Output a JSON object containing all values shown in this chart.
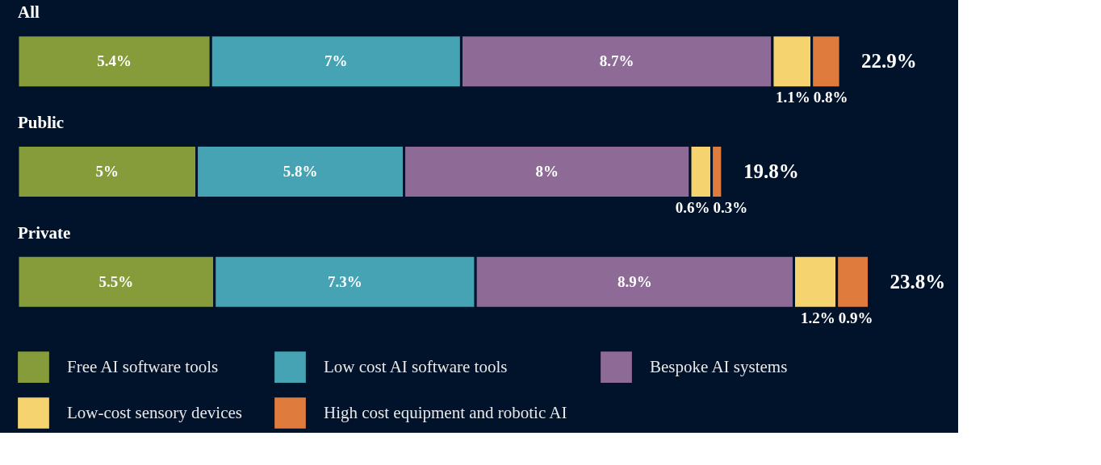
{
  "chart_data": {
    "type": "bar",
    "orientation": "horizontal",
    "stacked": true,
    "categories": [
      "All",
      "Public",
      "Private"
    ],
    "series": [
      {
        "name": "Free AI software tools",
        "color": "#869c3a",
        "values": [
          5.4,
          5,
          5.5
        ],
        "value_labels": [
          "5.4%",
          "5%",
          "5.5%"
        ]
      },
      {
        "name": "Low cost AI software tools",
        "color": "#46a3b3",
        "values": [
          7,
          5.8,
          7.3
        ],
        "value_labels": [
          "7%",
          "5.8%",
          "7.3%"
        ]
      },
      {
        "name": "Bespoke AI systems",
        "color": "#8e6b97",
        "values": [
          8.7,
          8,
          8.9
        ],
        "value_labels": [
          "8.7%",
          "8%",
          "8.9%"
        ]
      },
      {
        "name": "Low-cost sensory devices",
        "color": "#f5d36f",
        "values": [
          1.1,
          0.6,
          1.2
        ],
        "value_labels": [
          "1.1%",
          "0.6%",
          "1.2%"
        ]
      },
      {
        "name": "High cost equipment and robotic AI",
        "color": "#de7b3d",
        "values": [
          0.8,
          0.3,
          0.9
        ],
        "value_labels": [
          "0.8%",
          "0.3%",
          "0.9%"
        ]
      }
    ],
    "totals": [
      "22.9%",
      "19.8%",
      "23.8%"
    ],
    "legend": "bottom"
  }
}
